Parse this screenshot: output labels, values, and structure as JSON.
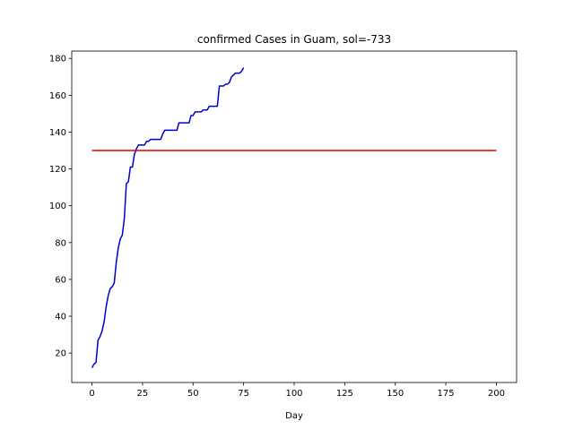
{
  "chart_data": {
    "type": "line",
    "title": "confirmed Cases in Guam, sol=-733",
    "xlabel": "Day",
    "ylabel": "",
    "xlim": [
      -10,
      210
    ],
    "ylim": [
      4,
      184
    ],
    "xticks": [
      0,
      25,
      50,
      75,
      100,
      125,
      150,
      175,
      200
    ],
    "yticks": [
      20,
      40,
      60,
      80,
      100,
      120,
      140,
      160,
      180
    ],
    "grid": false,
    "series": [
      {
        "color": "#0000cc",
        "x": [
          0,
          1,
          2,
          3,
          4,
          5,
          6,
          7,
          8,
          9,
          10,
          11,
          12,
          13,
          14,
          15,
          16,
          17,
          18,
          19,
          20,
          21,
          22,
          23,
          24,
          25,
          26,
          27,
          28,
          29,
          30,
          31,
          32,
          33,
          34,
          35,
          36,
          37,
          38,
          39,
          40,
          41,
          42,
          43,
          44,
          45,
          46,
          47,
          48,
          49,
          50,
          51,
          52,
          53,
          54,
          55,
          56,
          57,
          58,
          59,
          60,
          61,
          62,
          63,
          64,
          65,
          66,
          67,
          68,
          69,
          70,
          71,
          72,
          73,
          74,
          75
        ],
        "y": [
          12,
          14,
          15,
          27,
          29,
          32,
          37,
          45,
          51,
          55,
          56,
          58,
          69,
          77,
          82,
          84,
          93,
          112,
          113,
          121,
          121,
          128,
          131,
          133,
          133,
          133,
          133,
          135,
          135,
          136,
          136,
          136,
          136,
          136,
          136,
          139,
          141,
          141,
          141,
          141,
          141,
          141,
          141,
          145,
          145,
          145,
          145,
          145,
          145,
          149,
          149,
          151,
          151,
          151,
          151,
          152,
          152,
          152,
          154,
          154,
          154,
          154,
          154,
          165,
          165,
          165,
          166,
          166,
          167,
          170,
          171,
          172,
          172,
          172,
          173,
          175
        ]
      },
      {
        "color": "#dd0000",
        "x": [
          0,
          200
        ],
        "y": [
          130,
          130
        ]
      }
    ]
  }
}
